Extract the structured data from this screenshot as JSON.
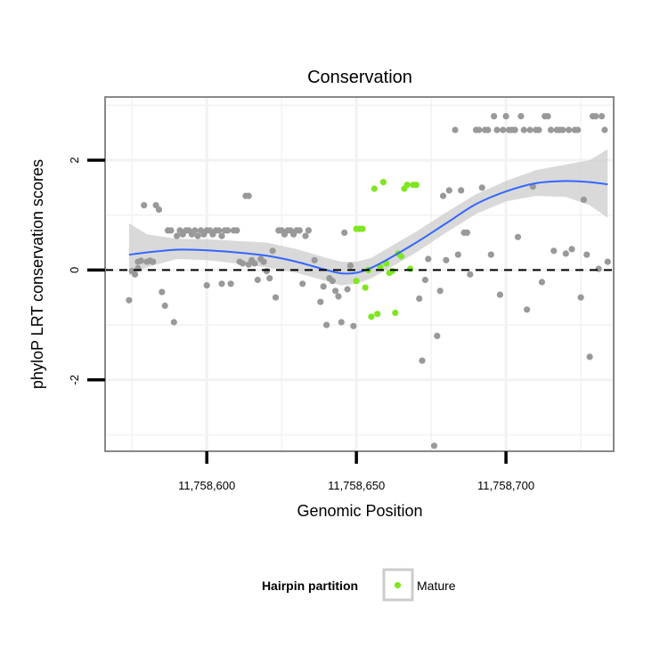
{
  "chart_data": {
    "type": "scatter",
    "title": "Conservation",
    "xlabel": "Genomic Position",
    "ylabel": "phyloP LRT conservation scores",
    "xlim": [
      11758566,
      11758736
    ],
    "ylim": [
      -3.3,
      3.15
    ],
    "x_ticks": [
      {
        "value": 11758600,
        "label": "11,758,600"
      },
      {
        "value": 11758650,
        "label": "11,758,650"
      },
      {
        "value": 11758700,
        "label": "11,758,700"
      }
    ],
    "y_ticks": [
      {
        "value": -2,
        "label": "-2"
      },
      {
        "value": 0,
        "label": "0"
      },
      {
        "value": 2,
        "label": "2"
      }
    ],
    "grid": true,
    "reference_line": {
      "y": 0,
      "style": "dashed",
      "color": "#000000"
    },
    "colors": {
      "other": "#999999",
      "mature": "#7fe61f",
      "smooth_line": "#3366ff",
      "confidence_band": "#cccccc",
      "panel_border": "#888888"
    },
    "legend": {
      "title": "Hairpin partition",
      "entries": [
        "Mature"
      ],
      "position": "bottom"
    },
    "series": [
      {
        "key": "other",
        "points": [
          [
            11758574,
            -0.55
          ],
          [
            11758575,
            -0.02
          ],
          [
            11758576,
            -0.08
          ],
          [
            11758577,
            0.03
          ],
          [
            11758577,
            0.15
          ],
          [
            11758578,
            0.17
          ],
          [
            11758579,
            1.18
          ],
          [
            11758580,
            0.15
          ],
          [
            11758581,
            0.17
          ],
          [
            11758582,
            0.15
          ],
          [
            11758583,
            1.18
          ],
          [
            11758584,
            1.1
          ],
          [
            11758585,
            -0.4
          ],
          [
            11758586,
            -0.65
          ],
          [
            11758587,
            0.72
          ],
          [
            11758588,
            0.72
          ],
          [
            11758589,
            -0.95
          ],
          [
            11758590,
            0.62
          ],
          [
            11758591,
            0.72
          ],
          [
            11758592,
            0.65
          ],
          [
            11758593,
            0.72
          ],
          [
            11758594,
            0.72
          ],
          [
            11758595,
            0.65
          ],
          [
            11758596,
            0.72
          ],
          [
            11758597,
            0.62
          ],
          [
            11758598,
            0.72
          ],
          [
            11758599,
            0.65
          ],
          [
            11758600,
            0.72
          ],
          [
            11758600,
            -0.28
          ],
          [
            11758601,
            0.72
          ],
          [
            11758602,
            0.65
          ],
          [
            11758603,
            0.72
          ],
          [
            11758604,
            0.72
          ],
          [
            11758605,
            0.62
          ],
          [
            11758605,
            -0.25
          ],
          [
            11758606,
            0.72
          ],
          [
            11758607,
            0.72
          ],
          [
            11758608,
            -0.25
          ],
          [
            11758609,
            0.72
          ],
          [
            11758610,
            0.72
          ],
          [
            11758611,
            0.15
          ],
          [
            11758612,
            0.12
          ],
          [
            11758613,
            1.35
          ],
          [
            11758614,
            1.35
          ],
          [
            11758614,
            0.1
          ],
          [
            11758615,
            0.18
          ],
          [
            11758616,
            0.12
          ],
          [
            11758617,
            -0.18
          ],
          [
            11758618,
            0.2
          ],
          [
            11758619,
            0.15
          ],
          [
            11758620,
            -0.02
          ],
          [
            11758621,
            -0.15
          ],
          [
            11758622,
            0.35
          ],
          [
            11758623,
            -0.5
          ],
          [
            11758624,
            0.72
          ],
          [
            11758625,
            0.72
          ],
          [
            11758626,
            0.65
          ],
          [
            11758627,
            0.72
          ],
          [
            11758628,
            0.72
          ],
          [
            11758629,
            0.65
          ],
          [
            11758630,
            0.72
          ],
          [
            11758631,
            0.72
          ],
          [
            11758632,
            -0.25
          ],
          [
            11758633,
            0.62
          ],
          [
            11758634,
            0.72
          ],
          [
            11758636,
            0.18
          ],
          [
            11758638,
            -0.58
          ],
          [
            11758639,
            -0.3
          ],
          [
            11758640,
            -1.0
          ],
          [
            11758641,
            -0.15
          ],
          [
            11758642,
            -0.2
          ],
          [
            11758643,
            -0.38
          ],
          [
            11758644,
            -0.48
          ],
          [
            11758645,
            -0.95
          ],
          [
            11758646,
            0.68
          ],
          [
            11758647,
            -0.35
          ],
          [
            11758648,
            0.08
          ],
          [
            11758649,
            -1.02
          ],
          [
            11758671,
            -0.52
          ],
          [
            11758672,
            -1.65
          ],
          [
            11758673,
            -0.18
          ],
          [
            11758674,
            0.2
          ],
          [
            11758676,
            -3.2
          ],
          [
            11758677,
            -1.2
          ],
          [
            11758678,
            -0.38
          ],
          [
            11758679,
            1.35
          ],
          [
            11758680,
            0.18
          ],
          [
            11758681,
            1.45
          ],
          [
            11758683,
            2.55
          ],
          [
            11758684,
            0.28
          ],
          [
            11758685,
            1.45
          ],
          [
            11758686,
            0.68
          ],
          [
            11758687,
            0.68
          ],
          [
            11758688,
            -0.08
          ],
          [
            11758690,
            2.55
          ],
          [
            11758691,
            2.55
          ],
          [
            11758692,
            1.5
          ],
          [
            11758693,
            2.55
          ],
          [
            11758694,
            2.55
          ],
          [
            11758695,
            0.28
          ],
          [
            11758696,
            2.8
          ],
          [
            11758697,
            2.55
          ],
          [
            11758698,
            -0.45
          ],
          [
            11758699,
            2.55
          ],
          [
            11758700,
            2.8
          ],
          [
            11758701,
            2.55
          ],
          [
            11758702,
            2.55
          ],
          [
            11758703,
            2.55
          ],
          [
            11758704,
            0.6
          ],
          [
            11758705,
            2.8
          ],
          [
            11758706,
            2.55
          ],
          [
            11758707,
            -0.72
          ],
          [
            11758708,
            2.55
          ],
          [
            11758709,
            1.52
          ],
          [
            11758710,
            2.55
          ],
          [
            11758711,
            2.55
          ],
          [
            11758712,
            -0.22
          ],
          [
            11758713,
            2.8
          ],
          [
            11758714,
            2.8
          ],
          [
            11758715,
            2.55
          ],
          [
            11758716,
            0.35
          ],
          [
            11758717,
            2.55
          ],
          [
            11758718,
            2.55
          ],
          [
            11758719,
            2.55
          ],
          [
            11758720,
            0.3
          ],
          [
            11758721,
            2.55
          ],
          [
            11758722,
            0.38
          ],
          [
            11758723,
            2.55
          ],
          [
            11758724,
            2.55
          ],
          [
            11758725,
            -0.5
          ],
          [
            11758726,
            1.28
          ],
          [
            11758727,
            0.28
          ],
          [
            11758728,
            -1.58
          ],
          [
            11758729,
            2.8
          ],
          [
            11758730,
            2.8
          ],
          [
            11758731,
            0.02
          ],
          [
            11758732,
            2.8
          ],
          [
            11758733,
            2.55
          ],
          [
            11758734,
            0.15
          ]
        ]
      },
      {
        "key": "mature",
        "name": "Mature",
        "points": [
          [
            11758650,
            0.75
          ],
          [
            11758650,
            -0.2
          ],
          [
            11758651,
            0.75
          ],
          [
            11758652,
            0.75
          ],
          [
            11758653,
            -0.32
          ],
          [
            11758654,
            0.0
          ],
          [
            11758655,
            -0.85
          ],
          [
            11758656,
            1.48
          ],
          [
            11758657,
            -0.8
          ],
          [
            11758658,
            0.05
          ],
          [
            11758659,
            1.6
          ],
          [
            11758660,
            0.12
          ],
          [
            11758661,
            -0.05
          ],
          [
            11758662,
            -0.02
          ],
          [
            11758663,
            -0.78
          ],
          [
            11758664,
            0.3
          ],
          [
            11758665,
            0.25
          ],
          [
            11758666,
            1.48
          ],
          [
            11758667,
            1.55
          ],
          [
            11758668,
            0.02
          ],
          [
            11758669,
            1.55
          ],
          [
            11758670,
            1.55
          ]
        ]
      }
    ],
    "smooth": {
      "x": [
        11758574,
        11758580,
        11758590,
        11758600,
        11758610,
        11758620,
        11758630,
        11758640,
        11758645,
        11758650,
        11758655,
        11758660,
        11758670,
        11758680,
        11758690,
        11758700,
        11758710,
        11758720,
        11758728,
        11758734
      ],
      "y": [
        0.28,
        0.32,
        0.37,
        0.36,
        0.32,
        0.26,
        0.15,
        0.0,
        -0.06,
        -0.05,
        0.04,
        0.18,
        0.5,
        0.85,
        1.2,
        1.43,
        1.58,
        1.62,
        1.6,
        1.56
      ],
      "lower": [
        -0.1,
        0.05,
        0.2,
        0.18,
        0.12,
        0.05,
        -0.05,
        -0.2,
        -0.28,
        -0.25,
        -0.15,
        0.0,
        0.32,
        0.68,
        1.02,
        1.25,
        1.35,
        1.33,
        1.18,
        0.95
      ],
      "upper": [
        0.85,
        0.65,
        0.57,
        0.56,
        0.53,
        0.5,
        0.38,
        0.22,
        0.15,
        0.15,
        0.22,
        0.38,
        0.7,
        1.05,
        1.38,
        1.62,
        1.82,
        1.92,
        2.0,
        2.2
      ]
    }
  }
}
